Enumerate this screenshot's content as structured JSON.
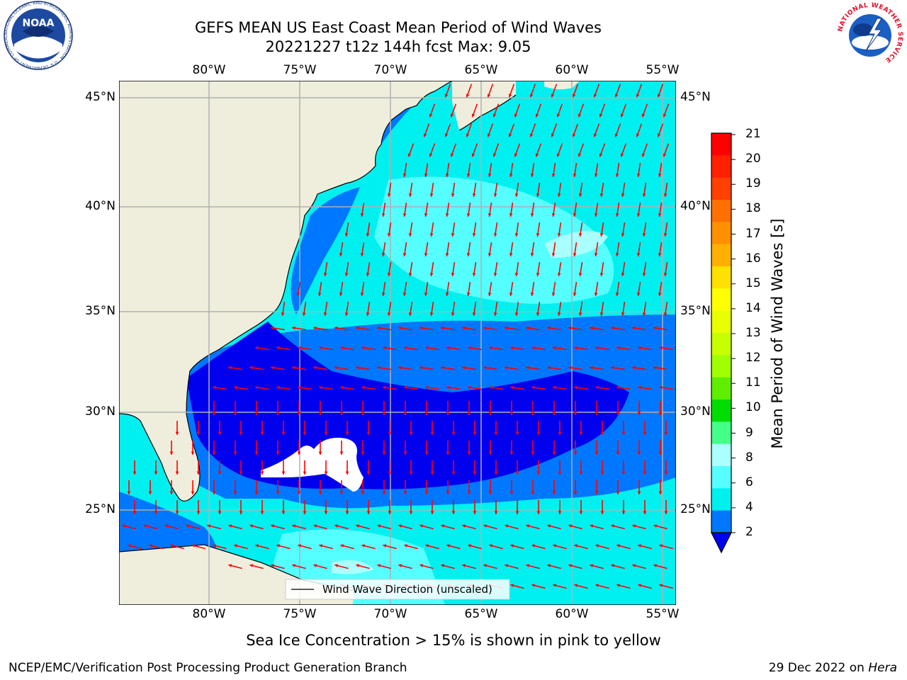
{
  "header": {
    "title_line1": "GEFS MEAN US East Coast Mean Period of Wind Waves",
    "title_line2": "20221227 t12z 144h fcst   Max: 9.05"
  },
  "map": {
    "lon_labels": [
      "80°W",
      "75°W",
      "70°W",
      "65°W",
      "60°W",
      "55°W"
    ],
    "lat_labels": [
      "45°N",
      "40°N",
      "35°N",
      "30°N",
      "25°N"
    ],
    "legend_label": "Wind Wave Direction (unscaled)",
    "colors": {
      "land": "#efeedd",
      "period_0_2": "#0000ee",
      "period_2_4": "#0077ff",
      "period_4_6": "#00f0f0",
      "period_6_8": "#55ffff",
      "period_8_9": "#aaffff",
      "arrow": "#ff0000",
      "grid": "#b0b0b0"
    }
  },
  "colorbar": {
    "label": "Mean Period of Wind Waves [s]",
    "ticks": [
      "21",
      "20",
      "19",
      "18",
      "17",
      "16",
      "15",
      "14",
      "13",
      "12",
      "11",
      "10",
      "9",
      "8",
      "6",
      "4",
      "2"
    ],
    "colors": [
      "#ff0000",
      "#ff2000",
      "#ff4000",
      "#ff7000",
      "#ff9000",
      "#ffb000",
      "#ffe000",
      "#ffff00",
      "#e8ff00",
      "#c8ff00",
      "#a0ff00",
      "#60ee00",
      "#00dd00",
      "#44ff88",
      "#aaffff",
      "#55ffff",
      "#00f0f0",
      "#0077ff"
    ],
    "extend_color": "#0000ee"
  },
  "footer": {
    "ice_note": "Sea Ice Concentration > 15% is shown in pink to yellow",
    "branch": "NCEP/EMC/Verification Post Processing Product Generation Branch",
    "date": "29 Dec 2022 on ",
    "machine": "Hera"
  },
  "logos": {
    "noaa_text": "NOAA",
    "noaa_ring_text": "NATIONAL OCEANIC AND ATMOSPHERIC ADMINISTRATION · U.S. DEPARTMENT OF COMMERCE",
    "nws_ring_text": "NATIONAL WEATHER SERVICE"
  }
}
